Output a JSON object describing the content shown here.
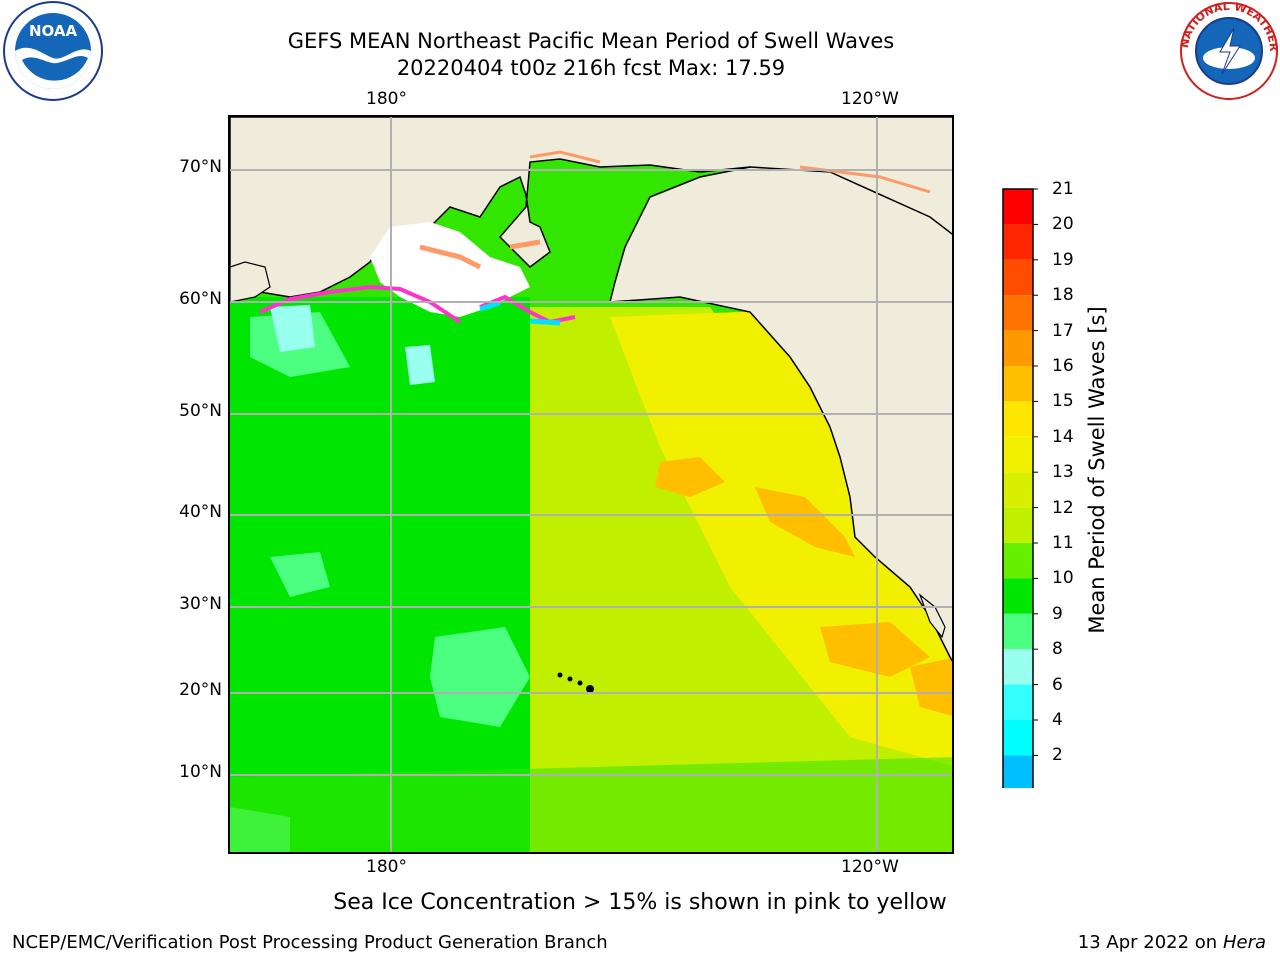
{
  "title": {
    "line1": "GEFS MEAN Northeast Pacific Mean Period of Swell Waves",
    "line2": "20220404 t00z 216h fcst   Max: 17.59"
  },
  "map": {
    "lat_labels": [
      "70°N",
      "60°N",
      "50°N",
      "40°N",
      "30°N",
      "20°N",
      "10°N"
    ],
    "lon_labels_top": [
      "180°",
      "120°W"
    ],
    "lon_labels_bottom": [
      "180°",
      "120°W"
    ],
    "land_color": "#efecdc",
    "grid_color": "#b0b0b0"
  },
  "colorbar": {
    "label": "Mean Period of Swell Waves [s]",
    "ticks": [
      "21",
      "20",
      "19",
      "18",
      "17",
      "16",
      "15",
      "14",
      "13",
      "12",
      "11",
      "10",
      "9",
      "8",
      "6",
      "4",
      "2"
    ],
    "colors_top_to_bottom": [
      "#ff0000",
      "#ff2600",
      "#ff4d00",
      "#ff7300",
      "#ff9900",
      "#ffbf00",
      "#ffe600",
      "#f0f000",
      "#d8f000",
      "#c0f000",
      "#66f000",
      "#00e600",
      "#4dff80",
      "#99ffee",
      "#33ffff",
      "#00ffff",
      "#00bfff",
      "#0066ff"
    ],
    "extend_color": "#0000ff"
  },
  "subtitle": "Sea Ice Concentration > 15% is shown in pink to yellow",
  "footer": {
    "credit": "NCEP/EMC/Verification Post Processing Product Generation Branch",
    "date_prefix": "13 Apr 2022 on ",
    "machine": "Hera"
  },
  "logos": {
    "noaa": "NOAA",
    "nws": "NATIONAL WEATHER SERVICE"
  }
}
